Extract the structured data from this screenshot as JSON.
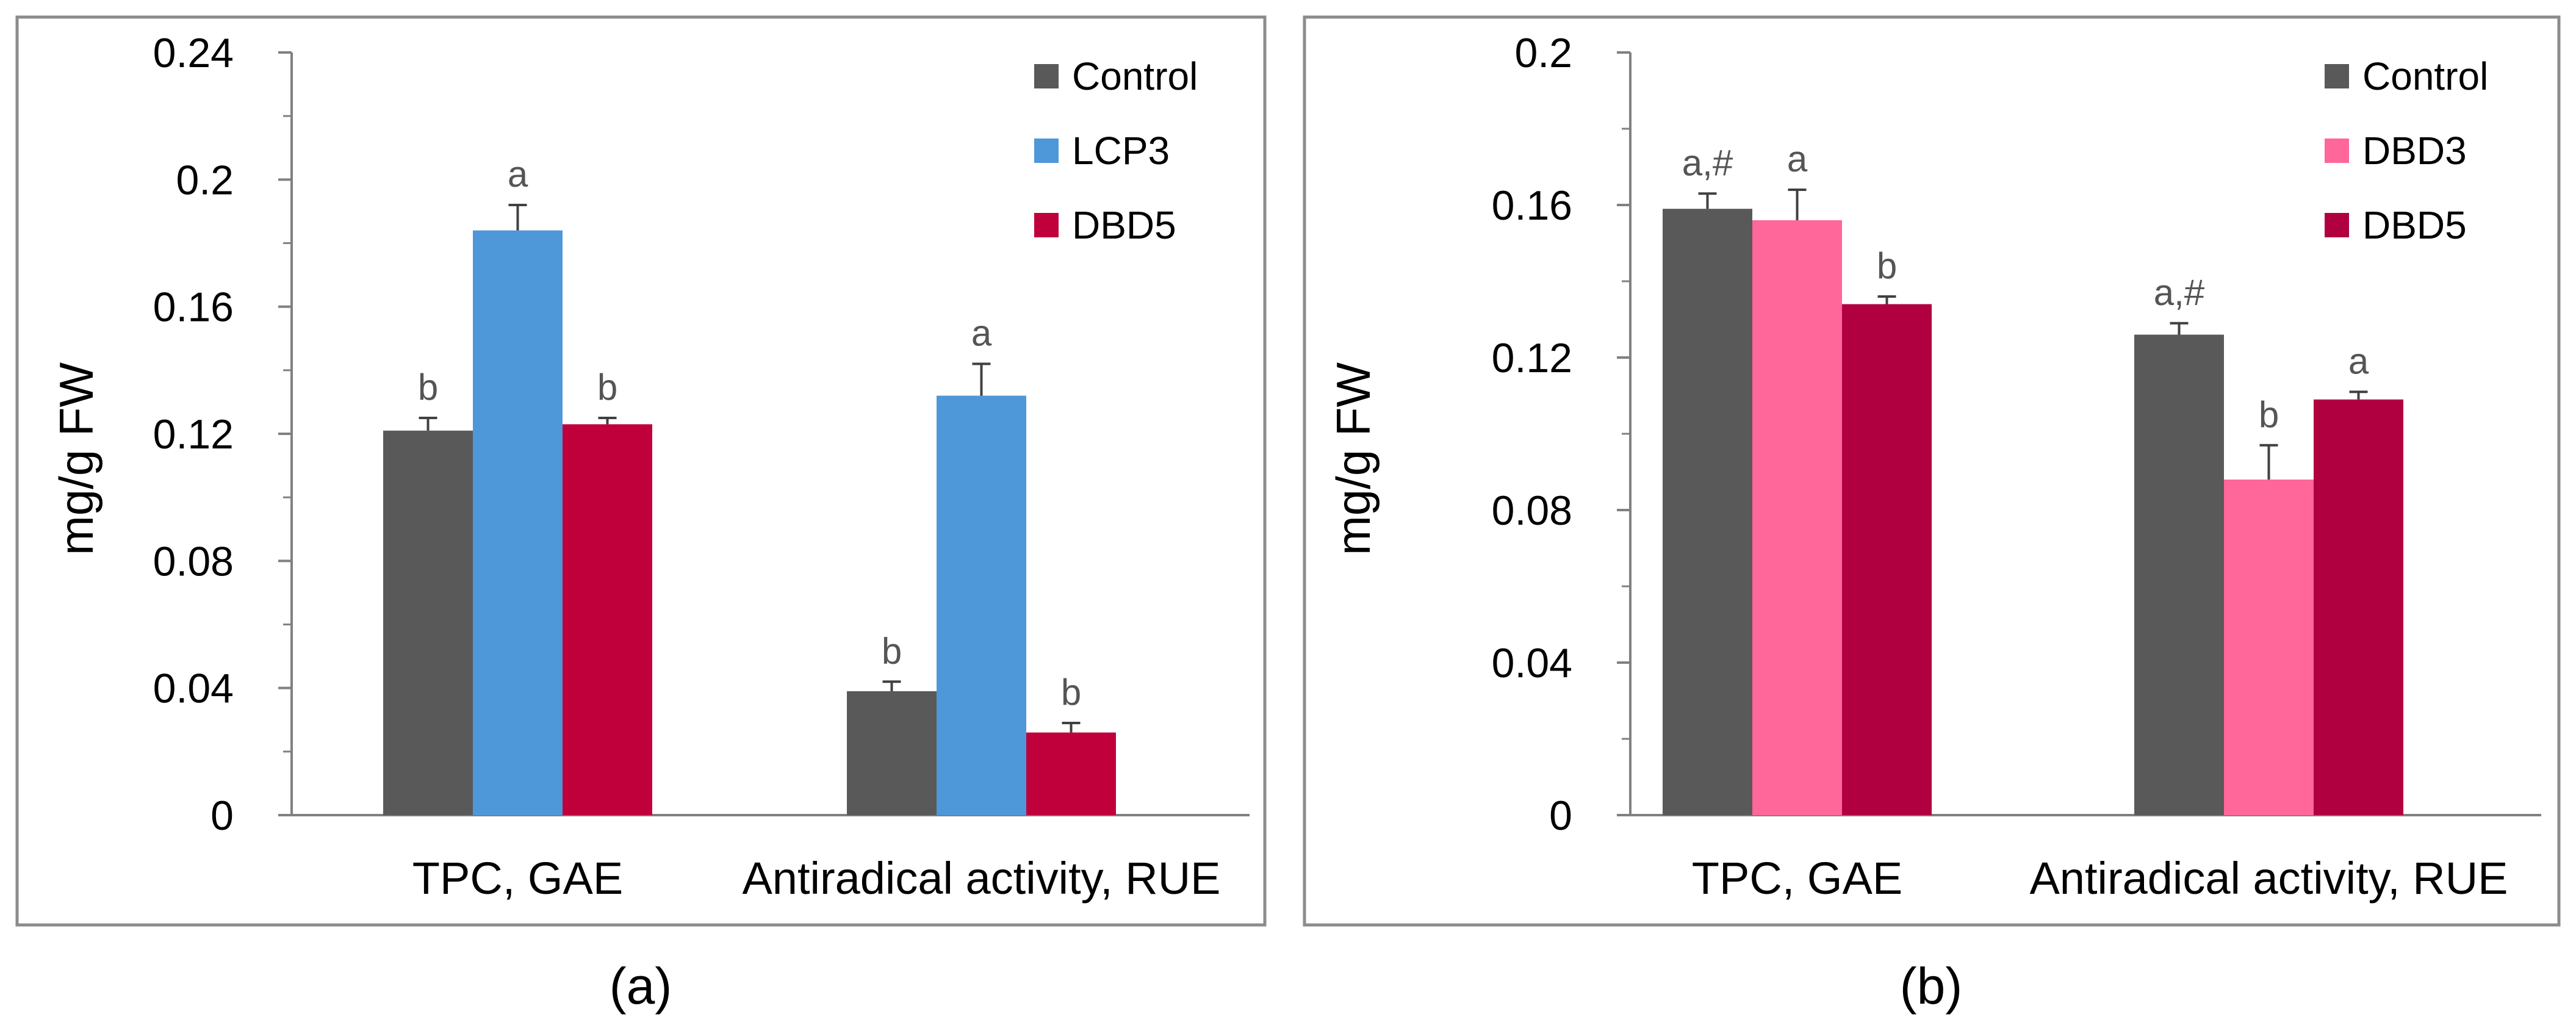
{
  "chart_data": [
    {
      "panel_label": "(a)",
      "type": "bar",
      "ylabel": "mg/g FW",
      "ylim": [
        0,
        0.24
      ],
      "yticks": [
        "0",
        "0.04",
        "0.08",
        "0.12",
        "0.16",
        "0.2",
        "0.24"
      ],
      "categories": [
        "TPC, GAE",
        "Antiradical activity, RUE"
      ],
      "series": [
        {
          "name": "Control",
          "color": "#595959",
          "values": [
            0.121,
            0.039
          ],
          "errors": [
            0.004,
            0.003
          ],
          "labels": [
            "b",
            "b"
          ]
        },
        {
          "name": "LCP3",
          "color": "#4e97d9",
          "values": [
            0.184,
            0.132
          ],
          "errors": [
            0.008,
            0.01
          ],
          "labels": [
            "a",
            "a"
          ]
        },
        {
          "name": "DBD5",
          "color": "#c0003b",
          "values": [
            0.123,
            0.026
          ],
          "errors": [
            0.002,
            0.003
          ],
          "labels": [
            "b",
            "b"
          ]
        }
      ]
    },
    {
      "panel_label": "(b)",
      "type": "bar",
      "ylabel": "mg/g FW",
      "ylim": [
        0,
        0.2
      ],
      "yticks": [
        "0",
        "0.04",
        "0.08",
        "0.12",
        "0.16",
        "0.2"
      ],
      "categories": [
        "TPC, GAE",
        "Antiradical activity, RUE"
      ],
      "series": [
        {
          "name": "Control",
          "color": "#595959",
          "values": [
            0.159,
            0.126
          ],
          "errors": [
            0.004,
            0.003
          ],
          "labels": [
            "a,#",
            "a,#"
          ]
        },
        {
          "name": "DBD3",
          "color": "#ff6699",
          "values": [
            0.156,
            0.088
          ],
          "errors": [
            0.008,
            0.009
          ],
          "labels": [
            "a",
            "b"
          ]
        },
        {
          "name": "DBD5",
          "color": "#b00040",
          "values": [
            0.134,
            0.109
          ],
          "errors": [
            0.002,
            0.002
          ],
          "labels": [
            "b",
            "a"
          ]
        }
      ]
    }
  ]
}
